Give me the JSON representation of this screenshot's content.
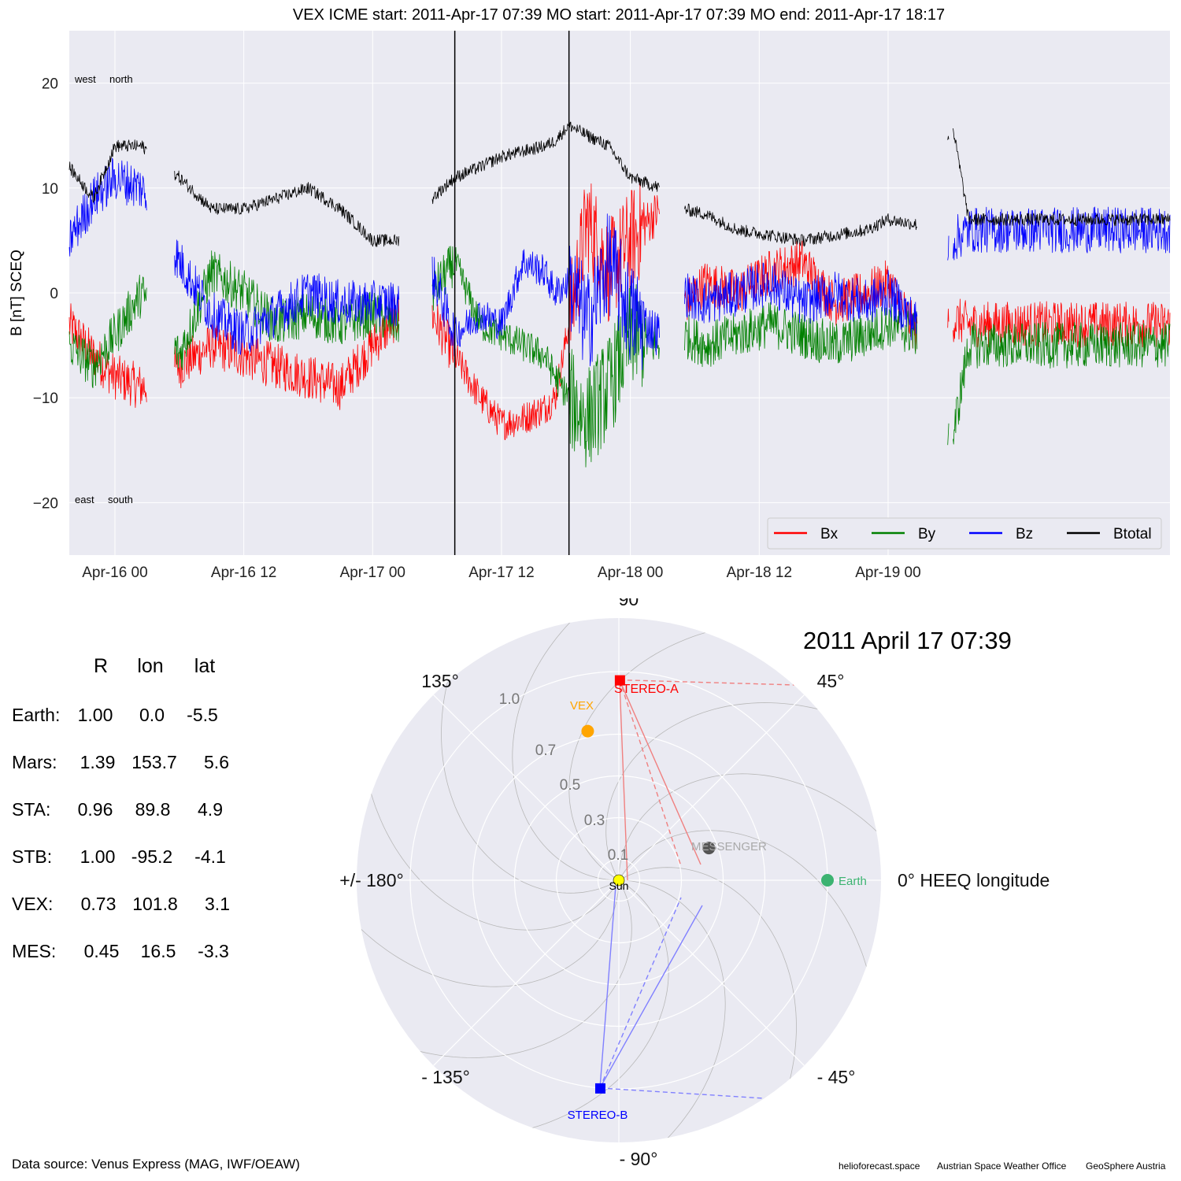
{
  "title": "VEX    ICME start: 2011-Apr-17 07:39   MO start: 2011-Apr-17 07:39   MO end: 2011-Apr-17 18:17",
  "chart_data": [
    {
      "type": "line",
      "title": "VEX    ICME start: 2011-Apr-17 07:39   MO start: 2011-Apr-17 07:39   MO end: 2011-Apr-17 18:17",
      "ylabel": "B [nT] SCEQ",
      "ylim": [
        -25,
        25
      ],
      "xlim": [
        "2011-04-15 19:45",
        "2011-04-20 02:15"
      ],
      "yticks": [
        -20,
        -10,
        0,
        10,
        20
      ],
      "ytick_labels": [
        "−20",
        "−10",
        "0",
        "10",
        "20"
      ],
      "xticks": [
        "2011-04-16 00:00",
        "2011-04-16 12:00",
        "2011-04-17 00:00",
        "2011-04-17 12:00",
        "2011-04-18 00:00",
        "2011-04-18 12:00",
        "2011-04-19 00:00"
      ],
      "xtick_labels": [
        "Apr-16 00",
        "Apr-16 12",
        "Apr-17 00",
        "Apr-17 12",
        "Apr-18 00",
        "Apr-18 12",
        "Apr-19 00"
      ],
      "grid": true,
      "legend_position": "bottom-right",
      "annotations": {
        "upper": [
          "west",
          "north"
        ],
        "lower": [
          "east",
          "south"
        ]
      },
      "vlines": [
        {
          "name": "ICME start / MO start",
          "x": "2011-04-17 07:39"
        },
        {
          "name": "MO end",
          "x": "2011-04-17 18:17"
        }
      ],
      "gap_ranges": [
        [
          "2011-04-16 03:00",
          "2011-04-16 05:30"
        ],
        [
          "2011-04-17 02:30",
          "2011-04-17 05:30"
        ],
        [
          "2011-04-18 02:45",
          "2011-04-18 05:00"
        ],
        [
          "2011-04-19 02:45",
          "2011-04-19 05:30"
        ],
        [
          "2011-04-19 05:40",
          "2011-04-19 06:00"
        ]
      ],
      "series": [
        {
          "name": "Bx",
          "color": "#ff0000",
          "x": [
            "2011-04-15 19:45",
            "2011-04-15 22:00",
            "2011-04-16 00:00",
            "2011-04-16 02:30",
            "2011-04-16 06:00",
            "2011-04-16 09:00",
            "2011-04-16 12:00",
            "2011-04-16 15:00",
            "2011-04-16 18:00",
            "2011-04-16 21:00",
            "2011-04-17 00:00",
            "2011-04-17 02:30",
            "2011-04-17 05:30",
            "2011-04-17 07:39",
            "2011-04-17 10:00",
            "2011-04-17 12:00",
            "2011-04-17 14:00",
            "2011-04-17 16:00",
            "2011-04-17 17:00",
            "2011-04-17 18:17",
            "2011-04-17 20:00",
            "2011-04-17 22:00",
            "2011-04-18 00:00",
            "2011-04-18 02:45",
            "2011-04-18 05:00",
            "2011-04-18 07:00",
            "2011-04-18 10:00",
            "2011-04-18 13:00",
            "2011-04-18 16:00",
            "2011-04-18 19:00",
            "2011-04-18 22:00",
            "2011-04-19 00:00",
            "2011-04-19 02:45",
            "2011-04-19 06:00",
            "2011-04-19 07:30",
            "2011-04-20 02:15"
          ],
          "values": [
            -3,
            -6,
            -8,
            -9,
            -7,
            -5,
            -6,
            -7,
            -8,
            -9,
            -5,
            -2,
            -2,
            -6,
            -10,
            -12.5,
            -12,
            -11,
            -10,
            -3,
            7,
            2,
            5,
            8,
            -1,
            1,
            0,
            2,
            3,
            -1,
            0,
            1,
            -4,
            -2.5,
            -3,
            -3
          ]
        },
        {
          "name": "By",
          "color": "#008000",
          "x": [
            "2011-04-15 19:45",
            "2011-04-15 22:00",
            "2011-04-16 00:00",
            "2011-04-16 02:30",
            "2011-04-16 06:00",
            "2011-04-16 09:00",
            "2011-04-16 12:00",
            "2011-04-16 15:00",
            "2011-04-16 18:00",
            "2011-04-16 21:00",
            "2011-04-17 00:00",
            "2011-04-17 02:30",
            "2011-04-17 05:30",
            "2011-04-17 07:39",
            "2011-04-17 10:00",
            "2011-04-17 12:00",
            "2011-04-17 14:00",
            "2011-04-17 16:00",
            "2011-04-17 17:00",
            "2011-04-17 18:17",
            "2011-04-17 20:00",
            "2011-04-17 22:00",
            "2011-04-18 00:00",
            "2011-04-18 02:45",
            "2011-04-18 05:00",
            "2011-04-18 07:00",
            "2011-04-18 10:00",
            "2011-04-18 13:00",
            "2011-04-18 16:00",
            "2011-04-18 19:00",
            "2011-04-18 22:00",
            "2011-04-19 00:00",
            "2011-04-19 02:45",
            "2011-04-19 06:00",
            "2011-04-19 07:30",
            "2011-04-20 02:15"
          ],
          "values": [
            -5,
            -7,
            -4,
            0,
            -6,
            2,
            0,
            -3,
            -2,
            -3,
            -2,
            -3,
            0,
            3,
            -3,
            -4,
            -5,
            -6,
            -8,
            -10,
            -12,
            -9,
            -4,
            -5,
            -4,
            -5,
            -4,
            -3,
            -4,
            -5,
            -4,
            -3,
            -4,
            -14,
            -5,
            -5
          ]
        },
        {
          "name": "Bz",
          "color": "#0000ff",
          "x": [
            "2011-04-15 19:45",
            "2011-04-15 22:00",
            "2011-04-16 00:00",
            "2011-04-16 02:30",
            "2011-04-16 06:00",
            "2011-04-16 09:00",
            "2011-04-16 12:00",
            "2011-04-16 15:00",
            "2011-04-16 18:00",
            "2011-04-16 21:00",
            "2011-04-17 00:00",
            "2011-04-17 02:30",
            "2011-04-17 05:30",
            "2011-04-17 07:39",
            "2011-04-17 10:00",
            "2011-04-17 12:00",
            "2011-04-17 14:00",
            "2011-04-17 16:00",
            "2011-04-17 17:00",
            "2011-04-17 18:17",
            "2011-04-17 20:00",
            "2011-04-17 22:00",
            "2011-04-18 00:00",
            "2011-04-18 02:45",
            "2011-04-18 05:00",
            "2011-04-18 07:00",
            "2011-04-18 10:00",
            "2011-04-18 13:00",
            "2011-04-18 16:00",
            "2011-04-18 19:00",
            "2011-04-18 22:00",
            "2011-04-19 00:00",
            "2011-04-19 02:45",
            "2011-04-19 06:00",
            "2011-04-19 07:30",
            "2011-04-20 02:15"
          ],
          "values": [
            5,
            9,
            11,
            10,
            3,
            -2,
            -4,
            -2,
            0,
            -1,
            -1,
            -1,
            2,
            -4,
            -2,
            -3,
            3,
            2,
            0,
            1,
            -3,
            3,
            -2,
            -4,
            0,
            -1,
            0,
            1,
            -1,
            0,
            -1,
            0,
            -3,
            5,
            6,
            6
          ]
        },
        {
          "name": "Btotal",
          "color": "#000000",
          "x": [
            "2011-04-15 19:45",
            "2011-04-15 22:00",
            "2011-04-16 00:00",
            "2011-04-16 02:30",
            "2011-04-16 06:00",
            "2011-04-16 09:00",
            "2011-04-16 12:00",
            "2011-04-16 15:00",
            "2011-04-16 18:00",
            "2011-04-16 21:00",
            "2011-04-17 00:00",
            "2011-04-17 02:30",
            "2011-04-17 05:30",
            "2011-04-17 07:39",
            "2011-04-17 10:00",
            "2011-04-17 12:00",
            "2011-04-17 14:00",
            "2011-04-17 16:00",
            "2011-04-17 17:00",
            "2011-04-17 18:17",
            "2011-04-17 20:00",
            "2011-04-17 22:00",
            "2011-04-18 00:00",
            "2011-04-18 02:45",
            "2011-04-18 05:00",
            "2011-04-18 07:00",
            "2011-04-18 10:00",
            "2011-04-18 13:00",
            "2011-04-18 16:00",
            "2011-04-18 19:00",
            "2011-04-18 22:00",
            "2011-04-19 00:00",
            "2011-04-19 02:45",
            "2011-04-19 06:00",
            "2011-04-19 07:30",
            "2011-04-20 02:15"
          ],
          "values": [
            12,
            9,
            14,
            14,
            11,
            8,
            8,
            9,
            10,
            8,
            5,
            5,
            9,
            11,
            12,
            13,
            13.5,
            14,
            14.5,
            16,
            15,
            14,
            11,
            10,
            8,
            7.5,
            6,
            5.5,
            5,
            5.5,
            6,
            7,
            6.5,
            16,
            7,
            7
          ]
        }
      ]
    },
    {
      "type": "scatter",
      "subtype": "polar",
      "title": "2011 April 17  07:39",
      "radial_ticks": [
        "0.1",
        "0.3",
        "0.5",
        "0.7",
        "1.0"
      ],
      "angle_labels": [
        "0° HEEQ longitude",
        "45°",
        "90°",
        "135°",
        "+/- 180°",
        "- 135°",
        "- 90°",
        "- 45°"
      ],
      "grid": true,
      "series": [
        {
          "name": "Sun",
          "color": "#ffff00",
          "r": 0.0,
          "lon": 0.0
        },
        {
          "name": "Earth",
          "color": "#3cb371",
          "r": 1.0,
          "lon": 0.0
        },
        {
          "name": "STEREO-A",
          "color": "#ff0000",
          "r": 0.96,
          "lon": 89.8
        },
        {
          "name": "STEREO-B",
          "color": "#0000ff",
          "r": 1.0,
          "lon": -95.2
        },
        {
          "name": "VEX",
          "color": "#ffa500",
          "r": 0.73,
          "lon": 101.8
        },
        {
          "name": "MESSENGER",
          "color": "#555555",
          "r": 0.45,
          "lon": 16.5
        }
      ]
    }
  ],
  "positions_table": {
    "headers": [
      "R",
      "lon",
      "lat"
    ],
    "rows": [
      {
        "label": "Earth:",
        "r": "1.00",
        "lon": "0.0",
        "lat": "-5.5",
        "color": "#3cb371"
      },
      {
        "label": "Mars:",
        "r": "1.39",
        "lon": "153.7",
        "lat": "5.6",
        "color": "#ff4500"
      },
      {
        "label": "STA:",
        "r": "0.96",
        "lon": "89.8",
        "lat": "4.9",
        "color": "#ff0000"
      },
      {
        "label": "STB:",
        "r": "1.00",
        "lon": "-95.2",
        "lat": "-4.1",
        "color": "#0000ff"
      },
      {
        "label": "VEX:",
        "r": "0.73",
        "lon": "101.8",
        "lat": "3.1",
        "color": "#ffa500"
      },
      {
        "label": "MES:",
        "r": "0.45",
        "lon": "16.5",
        "lat": "-3.3",
        "color": "#a9a9a9"
      }
    ]
  },
  "footer": {
    "source": "Data source: Venus Express (MAG, IWF/OEAW)",
    "credits": [
      "helioforecast.space",
      "Austrian Space Weather Office",
      "GeoSphere Austria"
    ]
  }
}
